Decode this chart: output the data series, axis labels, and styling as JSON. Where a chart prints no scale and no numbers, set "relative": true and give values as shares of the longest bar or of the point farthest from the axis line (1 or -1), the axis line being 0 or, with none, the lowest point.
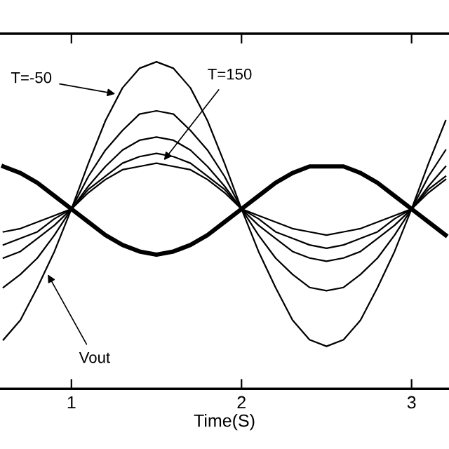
{
  "chart_data": {
    "type": "line",
    "xlabel": "Time(S)",
    "relative": true,
    "x": [
      0.6,
      0.7,
      0.8,
      0.9,
      1.0,
      1.1,
      1.2,
      1.3,
      1.4,
      1.5,
      1.6,
      1.7,
      1.8,
      1.9,
      2.0,
      2.1,
      2.2,
      2.3,
      2.4,
      2.5,
      2.6,
      2.7,
      2.8,
      2.9,
      3.0,
      3.1,
      3.2
    ],
    "xlim": [
      0.58,
      3.22
    ],
    "xticks": [
      1,
      2,
      3
    ],
    "grid": false,
    "legend": false,
    "marker": "none",
    "line_style": "solid",
    "series": [
      {
        "color": "#000000",
        "values": [
          0.15,
          0.21,
          0.31,
          0.42,
          0.55,
          0.69,
          0.82,
          0.92,
          0.98,
          1.0,
          0.98,
          0.92,
          0.82,
          0.69,
          0.55,
          0.42,
          0.31,
          0.21,
          0.15,
          0.13,
          0.15,
          0.21,
          0.31,
          0.42,
          0.55,
          0.69,
          0.82
        ]
      },
      {
        "color": "#000000",
        "values": [
          0.31,
          0.35,
          0.4,
          0.47,
          0.55,
          0.65,
          0.73,
          0.79,
          0.84,
          0.85,
          0.84,
          0.79,
          0.73,
          0.65,
          0.55,
          0.47,
          0.4,
          0.35,
          0.31,
          0.3,
          0.31,
          0.35,
          0.4,
          0.47,
          0.55,
          0.65,
          0.73
        ]
      },
      {
        "color": "#000000",
        "values": [
          0.4,
          0.42,
          0.46,
          0.5,
          0.55,
          0.62,
          0.68,
          0.73,
          0.76,
          0.77,
          0.76,
          0.73,
          0.68,
          0.62,
          0.55,
          0.5,
          0.46,
          0.42,
          0.4,
          0.39,
          0.4,
          0.42,
          0.46,
          0.5,
          0.55,
          0.62,
          0.68
        ]
      },
      {
        "color": "#000000",
        "values": [
          0.44,
          0.46,
          0.48,
          0.52,
          0.55,
          0.61,
          0.65,
          0.69,
          0.71,
          0.72,
          0.71,
          0.69,
          0.65,
          0.61,
          0.55,
          0.52,
          0.48,
          0.46,
          0.44,
          0.43,
          0.44,
          0.46,
          0.48,
          0.52,
          0.55,
          0.61,
          0.65
        ]
      },
      {
        "color": "#000000",
        "values": [
          0.48,
          0.49,
          0.51,
          0.53,
          0.55,
          0.6,
          0.64,
          0.67,
          0.68,
          0.69,
          0.68,
          0.67,
          0.64,
          0.6,
          0.55,
          0.53,
          0.51,
          0.49,
          0.48,
          0.47,
          0.48,
          0.49,
          0.51,
          0.53,
          0.55,
          0.6,
          0.64
        ]
      },
      {
        "color": "#000000",
        "values": [
          0.68,
          0.66,
          0.63,
          0.59,
          0.55,
          0.51,
          0.47,
          0.44,
          0.42,
          0.41,
          0.42,
          0.44,
          0.47,
          0.51,
          0.55,
          0.59,
          0.63,
          0.66,
          0.68,
          0.68,
          0.68,
          0.66,
          0.63,
          0.59,
          0.55,
          0.51,
          0.47
        ]
      }
    ],
    "annotations": [
      {
        "text": "T=-50",
        "x": 1.28,
        "y": 0.9
      },
      {
        "text": "T=150",
        "x": 1.53,
        "y": 0.69
      },
      {
        "text": "Vout",
        "x": 0.85,
        "y": 0.36
      }
    ]
  }
}
